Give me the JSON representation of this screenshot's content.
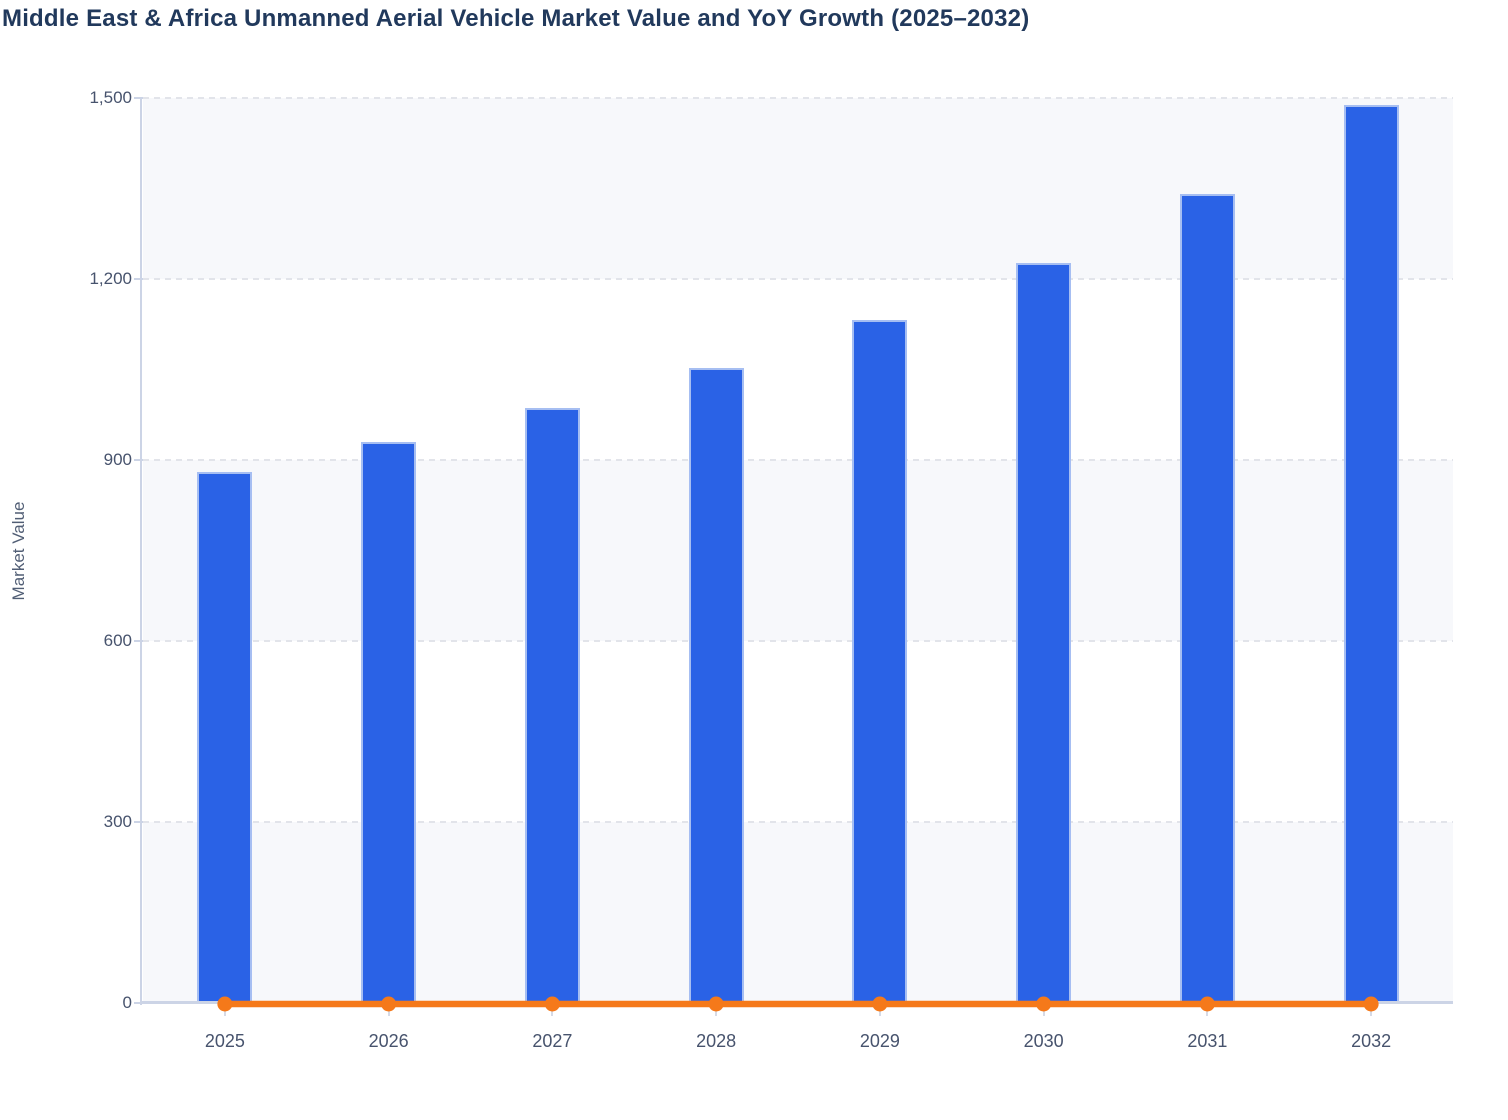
{
  "title": "Middle East & Africa Unmanned Aerial Vehicle Market Value and YoY Growth (2025–2032)",
  "y_axis_title": "Market Value",
  "colors": {
    "bar_fill": "#2a62e6",
    "bar_border": "#a6bef2",
    "line": "#f5791a",
    "band": "#f7f8fb",
    "grid_dash": "#e2e4ea",
    "axis_line": "#ccd4e6",
    "tick": "#d6dae6",
    "title_text": "#21395c",
    "axis_text": "#47536d",
    "label_text": "#515e75"
  },
  "chart_data": {
    "type": "bar",
    "title": "Middle East & Africa Unmanned Aerial Vehicle Market Value and YoY Growth (2025–2032)",
    "categories": [
      "2025",
      "2026",
      "2027",
      "2028",
      "2029",
      "2030",
      "2031",
      "2032"
    ],
    "series": [
      {
        "name": "Market Value",
        "type": "bar",
        "color": "#2a62e6",
        "values": [
          880,
          930,
          987,
          1053,
          1132,
          1227,
          1341,
          1489
        ]
      },
      {
        "name": "YoY Growth",
        "type": "line",
        "color": "#f5791a",
        "values": [
          0,
          0,
          0,
          0,
          0,
          0,
          0,
          0
        ],
        "note": "YoY Growth line renders flat at ~0 on the left Market Value axis; no secondary percentage axis labels are visible in the image"
      }
    ],
    "xlabel": "",
    "ylabel": "Market Value",
    "ylim": [
      0,
      1500
    ],
    "y_ticks": [
      0,
      300,
      600,
      900,
      1200,
      1500
    ],
    "y_tick_labels": [
      "0",
      "300",
      "600",
      "900",
      "1,200",
      "1,500"
    ],
    "grid": "dashed horizontal gridlines; alternating light horizontal band shading between gridlines",
    "legend": "none"
  }
}
